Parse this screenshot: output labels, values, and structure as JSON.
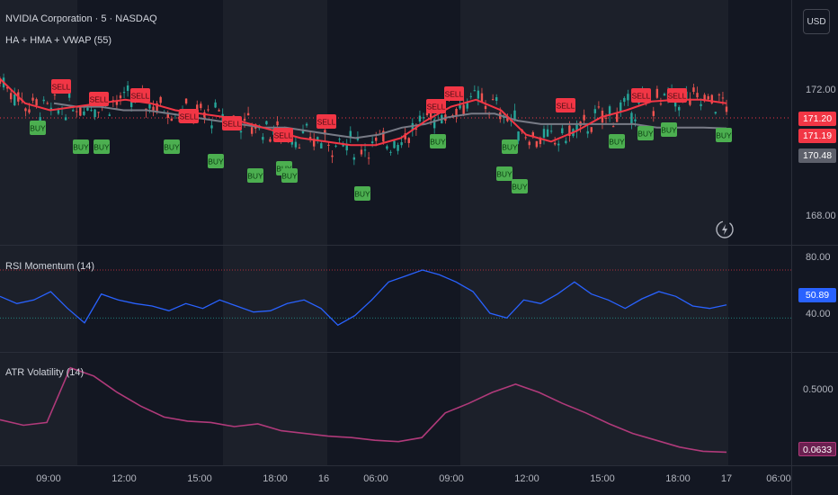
{
  "header": {
    "symbol_title": "NVIDIA Corporation · 5 · NASDAQ",
    "indicator_legend": "HA + HMA + VWAP (55)"
  },
  "currency_button": "USD",
  "panes": {
    "rsi_title": "RSI Momentum (14)",
    "atr_title": "ATR Volatility (14)"
  },
  "price_axis": {
    "main_ticks": [
      "172.00",
      "168.00"
    ],
    "rsi_ticks": [
      "80.00",
      "40.00"
    ],
    "atr_ticks": [
      "0.5000"
    ]
  },
  "price_tags": {
    "hma": "171.20",
    "last": "171.19",
    "vwap": "170.48",
    "rsi": "50.89",
    "atr": "0.0633"
  },
  "time_axis": [
    "09:00",
    "12:00",
    "15:00",
    "18:00",
    "16",
    "06:00",
    "09:00",
    "12:00",
    "15:00",
    "18:00",
    "17",
    "06:00"
  ],
  "signals": {
    "buy_label": "BUY",
    "sell_label": "SELL"
  },
  "colors": {
    "background": "#131722",
    "session_shade": "#1c202a",
    "bull": "#26a69a",
    "bear": "#ef5350",
    "hma": "#f23645",
    "vwap": "#787b86",
    "rsi": "#2962ff",
    "atr": "#b03a7a",
    "buy_badge": "#4caf50",
    "sell_badge": "#f23645"
  },
  "chart_data": {
    "type": "line",
    "panes": [
      {
        "name": "price",
        "ylim": [
          167.5,
          173.0
        ],
        "hma": [
          171.9,
          171.2,
          171.0,
          171.1,
          171.2,
          171.3,
          171.2,
          171.0,
          170.9,
          170.8,
          170.6,
          170.4,
          170.2,
          170.1,
          170.0,
          170.0,
          170.2,
          170.7,
          171.1,
          171.3,
          171.0,
          170.3,
          170.1,
          170.4,
          170.8,
          171.0,
          171.25,
          171.3,
          171.3,
          171.2
        ],
        "vwap": [
          171.2,
          171.1,
          171.1,
          171.0,
          171.0,
          170.9,
          170.8,
          170.7,
          170.6,
          170.5,
          170.5,
          170.4,
          170.3,
          170.2,
          170.3,
          170.5,
          170.6,
          170.8,
          170.9,
          170.9,
          170.7,
          170.6,
          170.6,
          170.6,
          170.6,
          170.6,
          170.5,
          170.5,
          170.5,
          170.48
        ],
        "buy_signals": 21,
        "sell_signals": 12
      },
      {
        "name": "RSI Momentum (14)",
        "ylim": [
          20,
          95
        ],
        "levels": [
          80,
          40
        ],
        "values": [
          58,
          52,
          55,
          62,
          48,
          36,
          60,
          55,
          52,
          50,
          46,
          52,
          48,
          55,
          50,
          45,
          46,
          52,
          55,
          48,
          34,
          42,
          55,
          70,
          75,
          80,
          76,
          70,
          62,
          44,
          40,
          55,
          52,
          60,
          70,
          60,
          55,
          48,
          56,
          62,
          58,
          50,
          48,
          50.89
        ]
      },
      {
        "name": "ATR Volatility (14)",
        "ylim": [
          0.0,
          0.75
        ],
        "values": [
          0.3,
          0.26,
          0.28,
          0.68,
          0.62,
          0.5,
          0.4,
          0.32,
          0.29,
          0.28,
          0.25,
          0.27,
          0.22,
          0.2,
          0.18,
          0.17,
          0.15,
          0.14,
          0.17,
          0.35,
          0.42,
          0.5,
          0.56,
          0.5,
          0.42,
          0.35,
          0.27,
          0.2,
          0.15,
          0.1,
          0.07,
          0.0633
        ]
      }
    ]
  }
}
